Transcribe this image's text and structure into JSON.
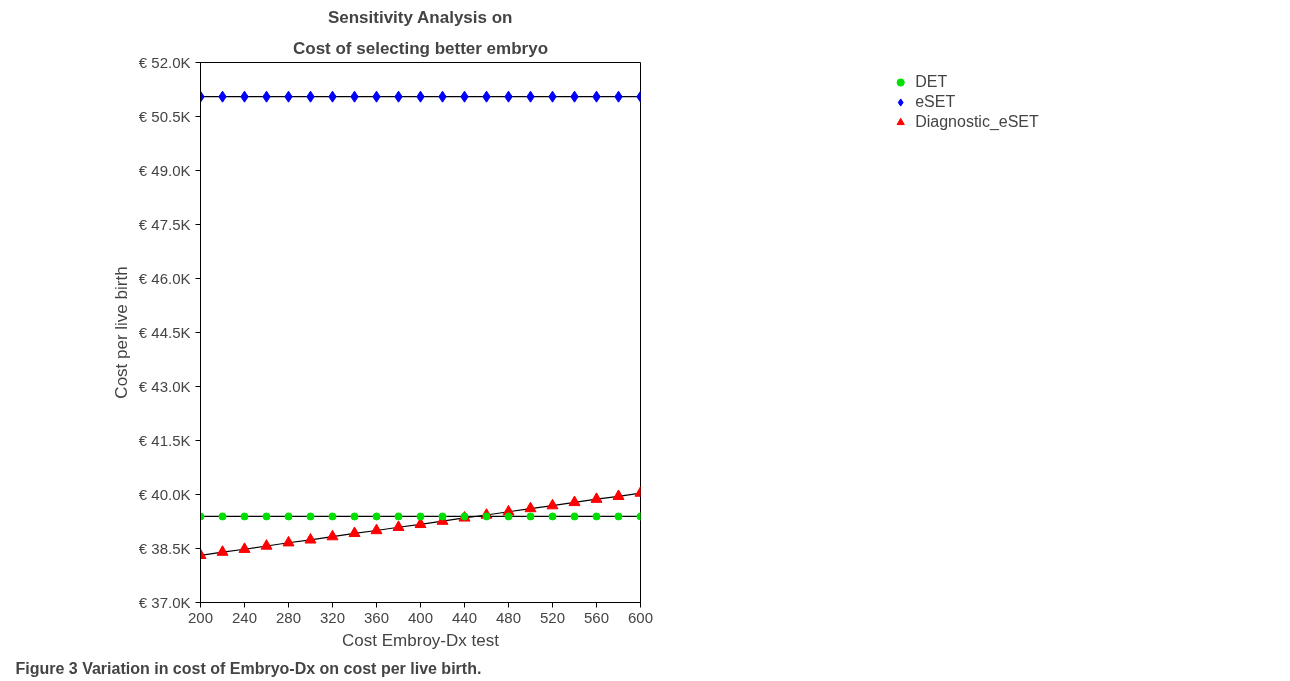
{
  "chart_data": {
    "type": "line",
    "title": "Sensitivity Analysis on",
    "subtitle": "Cost of selecting better embryo",
    "xlabel": "Cost Embroy-Dx test",
    "ylabel": "Cost per live birth",
    "annotations": [
      "Figure 3 Variation in cost of Embryo-Dx on cost per live birth."
    ],
    "x": [
      200,
      220,
      240,
      260,
      280,
      300,
      320,
      340,
      360,
      380,
      400,
      420,
      440,
      460,
      480,
      500,
      520,
      540,
      560,
      580,
      600
    ],
    "series": [
      {
        "name": "DET",
        "color": "#00e000",
        "marker": "circle",
        "values": [
          39.39,
          39.39,
          39.39,
          39.39,
          39.39,
          39.39,
          39.39,
          39.39,
          39.39,
          39.39,
          39.39,
          39.39,
          39.39,
          39.39,
          39.39,
          39.39,
          39.39,
          39.39,
          39.39,
          39.39,
          39.39
        ]
      },
      {
        "name": "eSET",
        "color": "#0000ff",
        "marker": "diamond",
        "values": [
          51.05,
          51.05,
          51.05,
          51.05,
          51.05,
          51.05,
          51.05,
          51.05,
          51.05,
          51.05,
          51.05,
          51.05,
          51.05,
          51.05,
          51.05,
          51.05,
          51.05,
          51.05,
          51.05,
          51.05,
          51.05
        ]
      },
      {
        "name": "Diagnostic_eSET",
        "color": "#ff0000",
        "marker": "triangle",
        "values": [
          38.31,
          38.4,
          38.48,
          38.57,
          38.66,
          38.74,
          38.83,
          38.92,
          39.0,
          39.09,
          39.17,
          39.26,
          39.35,
          39.43,
          39.52,
          39.61,
          39.69,
          39.78,
          39.87,
          39.95,
          40.04
        ]
      }
    ],
    "xlim": [
      200,
      600
    ],
    "xticks": [
      200,
      240,
      280,
      320,
      360,
      400,
      440,
      480,
      520,
      560,
      600
    ],
    "ylim": [
      37.0,
      52.0
    ],
    "yticks": [
      {
        "value": 37.0,
        "label": "€ 37.0K"
      },
      {
        "value": 38.5,
        "label": "€ 38.5K"
      },
      {
        "value": 40.0,
        "label": "€ 40.0K"
      },
      {
        "value": 41.5,
        "label": "€ 41.5K"
      },
      {
        "value": 43.0,
        "label": "€ 43.0K"
      },
      {
        "value": 44.5,
        "label": "€ 44.5K"
      },
      {
        "value": 46.0,
        "label": "€ 46.0K"
      },
      {
        "value": 47.5,
        "label": "€ 47.5K"
      },
      {
        "value": 49.0,
        "label": "€ 49.0K"
      },
      {
        "value": 50.5,
        "label": "€ 50.5K"
      },
      {
        "value": 52.0,
        "label": "€ 52.0K"
      }
    ],
    "grid": false,
    "legend": "top right"
  }
}
